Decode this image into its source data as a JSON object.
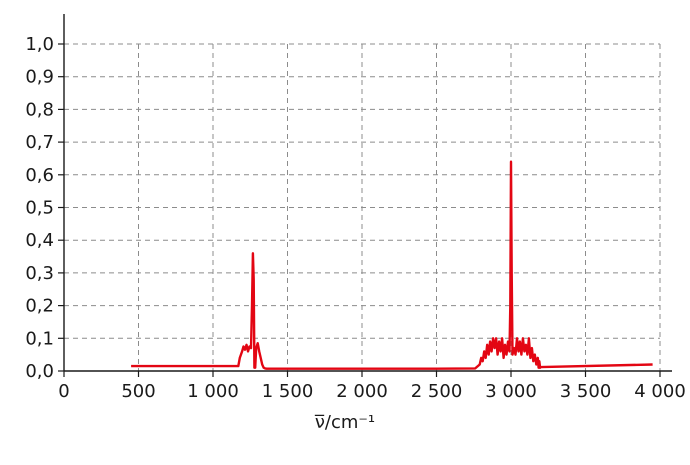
{
  "chart_data": {
    "type": "line",
    "title": "",
    "xlabel": "ν̅/cm⁻¹",
    "ylabel": "",
    "xlim": [
      0,
      4000
    ],
    "ylim": [
      0,
      1.0
    ],
    "x_ticks": [
      "0",
      "500",
      "1 000",
      "1 500",
      "2 000",
      "2 500",
      "3 000",
      "3 500",
      "4 000"
    ],
    "x_tick_values": [
      0,
      500,
      1000,
      1500,
      2000,
      2500,
      3000,
      3500,
      4000
    ],
    "y_ticks": [
      "0,0",
      "0,1",
      "0,2",
      "0,3",
      "0,4",
      "0,5",
      "0,6",
      "0,7",
      "0,8",
      "0,9",
      "1,0"
    ],
    "y_tick_values": [
      0,
      0.1,
      0.2,
      0.3,
      0.4,
      0.5,
      0.6,
      0.7,
      0.8,
      0.9,
      1.0
    ],
    "grid": true,
    "line_color": "#e30613",
    "series": [
      {
        "x": [
          450,
          1170,
          1180,
          1195,
          1205,
          1215,
          1225,
          1235,
          1245,
          1255,
          1262,
          1268,
          1273,
          1278,
          1283,
          1290,
          1300,
          1310,
          1320,
          1330,
          1340,
          1350,
          1360,
          1380,
          1500,
          2000,
          2500,
          2760,
          2790,
          2800,
          2810,
          2820,
          2830,
          2840,
          2850,
          2860,
          2870,
          2880,
          2890,
          2900,
          2910,
          2920,
          2930,
          2940,
          2950,
          2960,
          2970,
          2980,
          2990,
          2995,
          3000,
          3005,
          3010,
          3020,
          3030,
          3040,
          3050,
          3060,
          3070,
          3080,
          3090,
          3100,
          3110,
          3120,
          3130,
          3140,
          3150,
          3160,
          3170,
          3180,
          3185,
          3190,
          3195,
          3200,
          3950
        ],
        "y": [
          0.015,
          0.015,
          0.04,
          0.06,
          0.075,
          0.065,
          0.08,
          0.06,
          0.075,
          0.07,
          0.2,
          0.36,
          0.28,
          0.01,
          0.01,
          0.07,
          0.085,
          0.06,
          0.04,
          0.02,
          0.01,
          0.008,
          0.007,
          0.007,
          0.007,
          0.007,
          0.007,
          0.008,
          0.02,
          0.04,
          0.03,
          0.06,
          0.04,
          0.08,
          0.05,
          0.09,
          0.06,
          0.1,
          0.07,
          0.1,
          0.05,
          0.09,
          0.06,
          0.1,
          0.04,
          0.08,
          0.05,
          0.09,
          0.06,
          0.2,
          0.64,
          0.3,
          0.05,
          0.07,
          0.05,
          0.1,
          0.06,
          0.09,
          0.05,
          0.1,
          0.06,
          0.08,
          0.05,
          0.1,
          0.04,
          0.07,
          0.03,
          0.05,
          0.02,
          0.04,
          0.01,
          0.03,
          0.01,
          0.012,
          0.02
        ]
      }
    ]
  }
}
